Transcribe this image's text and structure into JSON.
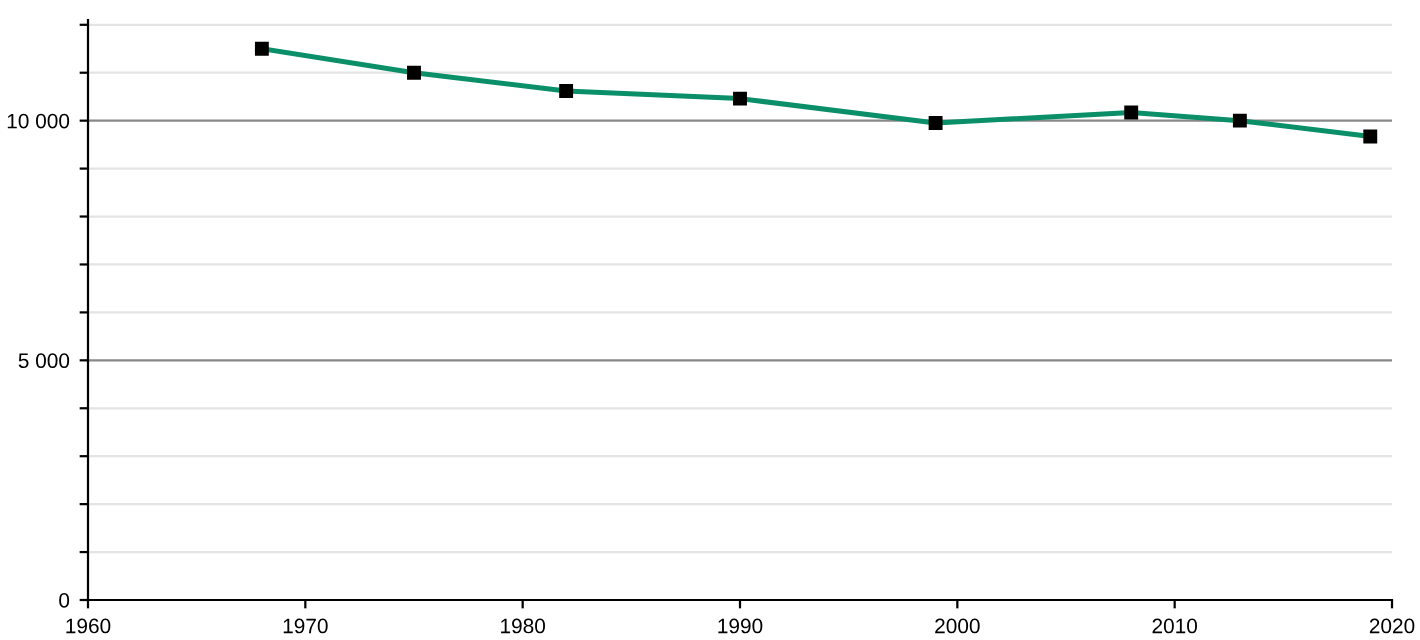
{
  "chart_data": {
    "type": "line",
    "x": [
      1968,
      1975,
      1982,
      1990,
      1999,
      2008,
      2013,
      2019
    ],
    "series": [
      {
        "color": "#0a8f68",
        "values": [
          11500,
          11000,
          10620,
          10460,
          9950,
          10170,
          10000,
          9670
        ]
      }
    ],
    "xlim": [
      1960,
      2020
    ],
    "xticks": [
      1960,
      1970,
      1980,
      1990,
      2000,
      2010,
      2020
    ],
    "ylim": [
      0,
      12100
    ],
    "yticks": [
      0,
      {
        "value": 1000,
        "label": null
      },
      {
        "value": 2000,
        "label": null
      },
      {
        "value": 3000,
        "label": null
      },
      {
        "value": 4000,
        "label": null
      },
      {
        "value": 5000,
        "label": "5 000"
      },
      {
        "value": 6000,
        "label": null
      },
      {
        "value": 7000,
        "label": null
      },
      {
        "value": 8000,
        "label": null
      },
      {
        "value": 9000,
        "label": null
      },
      {
        "value": 10000,
        "label": "10 000"
      },
      {
        "value": 11000,
        "label": null
      },
      {
        "value": 12000,
        "label": null
      }
    ],
    "grid": "y",
    "marker": "square",
    "line_style": "solid",
    "legend": false
  }
}
